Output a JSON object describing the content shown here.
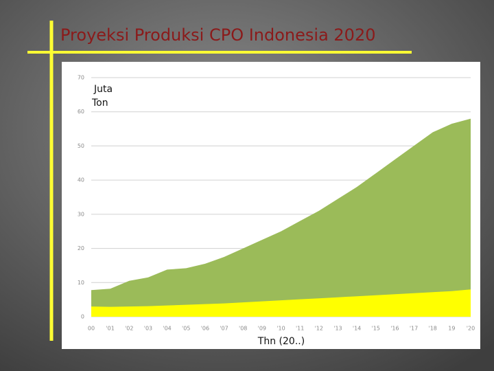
{
  "chart_data": {
    "type": "area",
    "title": "Proyeksi Produksi CPO Indonesia 2020",
    "y_label": [
      "Juta",
      "Ton"
    ],
    "x_label": "Thn (20..)",
    "categories": [
      "00",
      "'01",
      "'02",
      "'03",
      "'04",
      "'05",
      "'06",
      "'07",
      "'08",
      "'09",
      "'10",
      "'11",
      "'12",
      "'13",
      "'14",
      "'15",
      "'16",
      "'17",
      "'18",
      "19",
      "'20"
    ],
    "series": [
      {
        "color": "#9bbb59",
        "values": [
          7.8,
          8.2,
          10.5,
          11.5,
          13.8,
          14.2,
          15.5,
          17.5,
          20,
          22.5,
          25,
          28,
          31,
          34.5,
          38,
          42,
          46,
          50,
          54,
          56.5,
          58
        ]
      },
      {
        "color": "#ffff00",
        "values": [
          3,
          2.9,
          3,
          3.1,
          3.3,
          3.5,
          3.7,
          3.9,
          4.2,
          4.5,
          4.8,
          5.1,
          5.4,
          5.7,
          6,
          6.3,
          6.6,
          6.9,
          7.2,
          7.5,
          8
        ]
      }
    ],
    "ylim": [
      0,
      70
    ],
    "yticks": [
      0,
      10,
      20,
      30,
      40,
      50,
      60,
      70
    ],
    "grid": true
  }
}
